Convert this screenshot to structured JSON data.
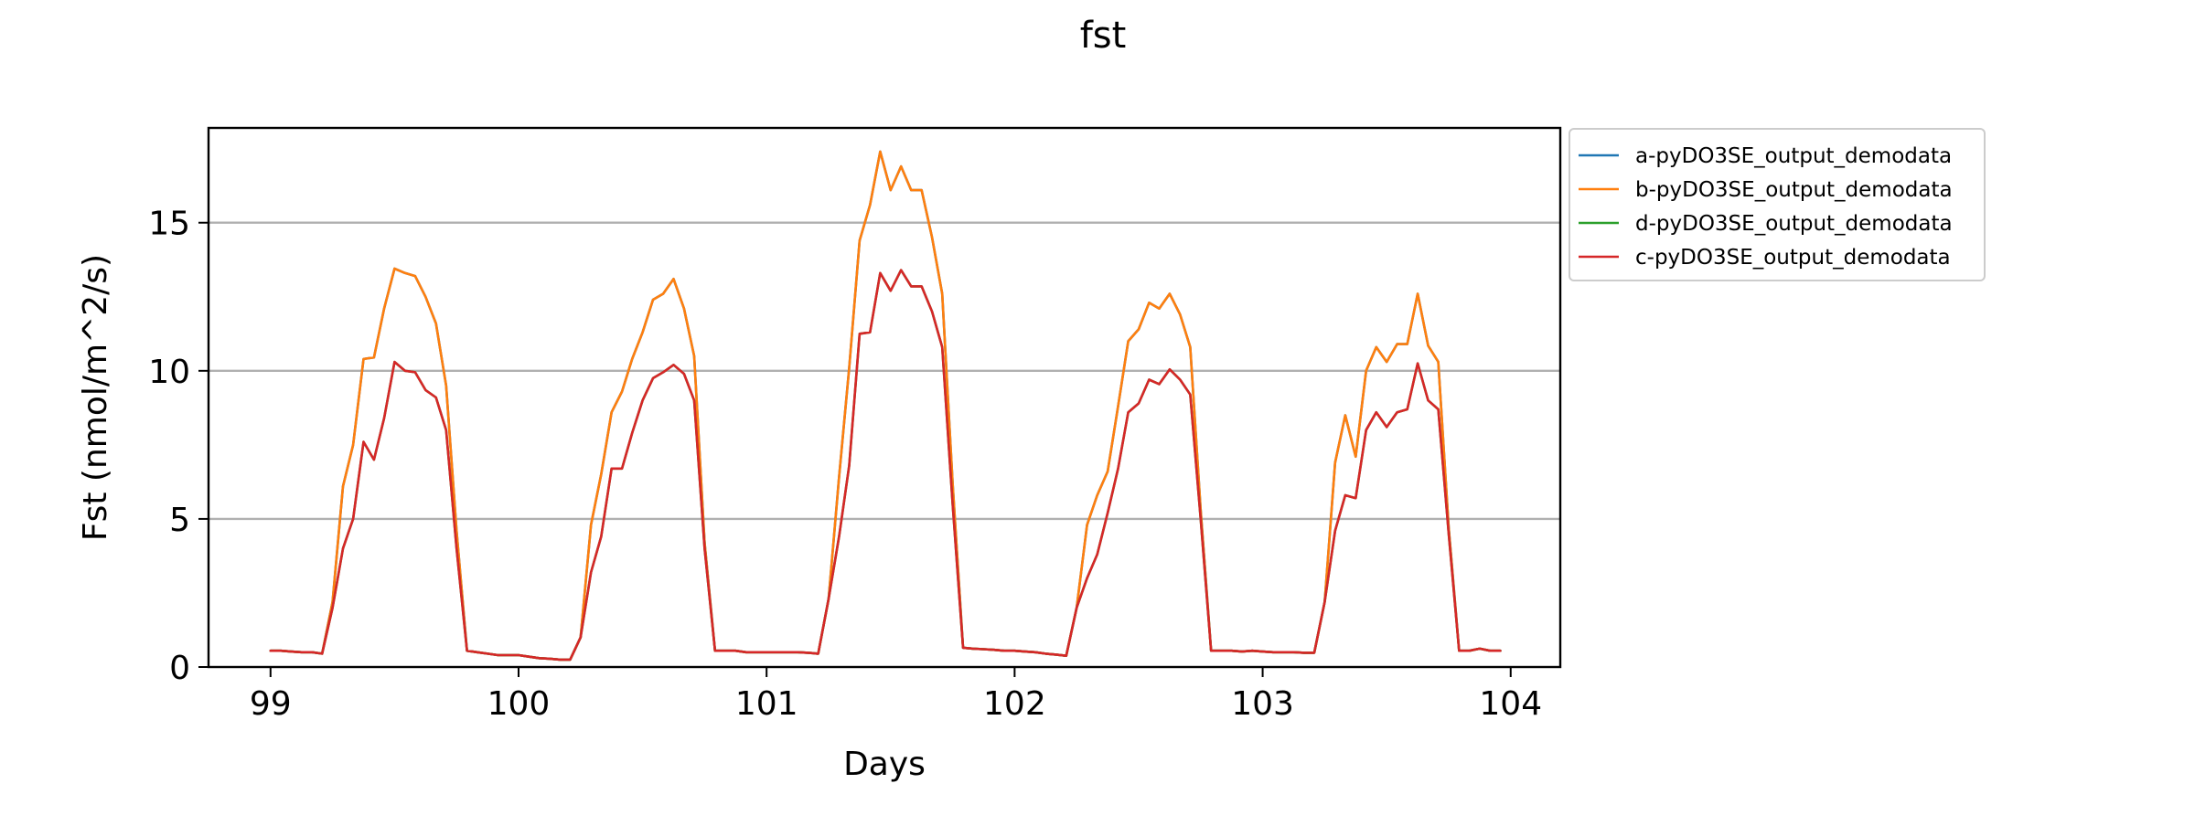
{
  "chart_data": {
    "type": "line",
    "title": "fst",
    "xlabel": "Days",
    "ylabel": "Fst (nmol/m^2/s)",
    "xlim": [
      98.75,
      104.2
    ],
    "ylim": [
      0,
      18.2
    ],
    "xticks": [
      99,
      100,
      101,
      102,
      103,
      104
    ],
    "yticks": [
      0,
      5,
      10,
      15
    ],
    "grid": "horizontal",
    "legend_position": "outside-top-right",
    "x": [
      99.0,
      99.042,
      99.083,
      99.125,
      99.167,
      99.208,
      99.25,
      99.292,
      99.333,
      99.375,
      99.417,
      99.458,
      99.5,
      99.542,
      99.583,
      99.625,
      99.667,
      99.708,
      99.75,
      99.792,
      99.833,
      99.875,
      99.917,
      99.958,
      100.0,
      100.042,
      100.083,
      100.125,
      100.167,
      100.208,
      100.25,
      100.292,
      100.333,
      100.375,
      100.417,
      100.458,
      100.5,
      100.542,
      100.583,
      100.625,
      100.667,
      100.708,
      100.75,
      100.792,
      100.833,
      100.875,
      100.917,
      100.958,
      101.0,
      101.042,
      101.083,
      101.125,
      101.167,
      101.208,
      101.25,
      101.292,
      101.333,
      101.375,
      101.417,
      101.458,
      101.5,
      101.542,
      101.583,
      101.625,
      101.667,
      101.708,
      101.75,
      101.792,
      101.833,
      101.875,
      101.917,
      101.958,
      102.0,
      102.042,
      102.083,
      102.125,
      102.167,
      102.208,
      102.25,
      102.292,
      102.333,
      102.375,
      102.417,
      102.458,
      102.5,
      102.542,
      102.583,
      102.625,
      102.667,
      102.708,
      102.75,
      102.792,
      102.833,
      102.875,
      102.917,
      102.958,
      103.0,
      103.042,
      103.083,
      103.125,
      103.167,
      103.208,
      103.25,
      103.292,
      103.333,
      103.375,
      103.417,
      103.458,
      103.5,
      103.542,
      103.583,
      103.625,
      103.667,
      103.708,
      103.75,
      103.792,
      103.833,
      103.875,
      103.917,
      103.958
    ],
    "series": [
      {
        "name": "a-pyDO3SE_output_demodata",
        "color": "#1f77b4",
        "values": [
          0.55,
          0.55,
          0.52,
          0.5,
          0.5,
          0.45,
          2.2,
          6.1,
          7.5,
          10.4,
          10.45,
          12.1,
          13.45,
          13.3,
          13.2,
          12.5,
          11.6,
          9.5,
          4.6,
          0.55,
          0.5,
          0.45,
          0.4,
          0.4,
          0.4,
          0.35,
          0.3,
          0.28,
          0.25,
          0.25,
          1.0,
          4.8,
          6.5,
          8.6,
          9.3,
          10.4,
          11.3,
          12.4,
          12.6,
          13.1,
          12.1,
          10.5,
          4.2,
          0.55,
          0.55,
          0.55,
          0.5,
          0.5,
          0.5,
          0.5,
          0.5,
          0.5,
          0.48,
          0.45,
          2.3,
          6.4,
          10.1,
          14.4,
          15.6,
          17.4,
          16.1,
          16.9,
          16.1,
          16.1,
          14.5,
          12.6,
          6.2,
          0.65,
          0.62,
          0.6,
          0.58,
          0.55,
          0.55,
          0.52,
          0.5,
          0.45,
          0.42,
          0.38,
          2.0,
          4.8,
          5.8,
          6.6,
          8.8,
          11.0,
          11.4,
          12.3,
          12.1,
          12.6,
          11.9,
          10.8,
          5.3,
          0.55,
          0.55,
          0.55,
          0.52,
          0.55,
          0.52,
          0.5,
          0.5,
          0.5,
          0.48,
          0.48,
          2.2,
          6.9,
          8.5,
          7.1,
          10.0,
          10.8,
          10.3,
          10.9,
          10.9,
          12.6,
          10.85,
          10.3,
          4.7,
          0.55,
          0.55,
          0.62,
          0.55,
          0.55
        ]
      },
      {
        "name": "b-pyDO3SE_output_demodata",
        "color": "#ff7f0e",
        "values": [
          0.55,
          0.55,
          0.52,
          0.5,
          0.5,
          0.45,
          2.2,
          6.1,
          7.5,
          10.4,
          10.45,
          12.1,
          13.45,
          13.3,
          13.2,
          12.5,
          11.6,
          9.5,
          4.6,
          0.55,
          0.5,
          0.45,
          0.4,
          0.4,
          0.4,
          0.35,
          0.3,
          0.28,
          0.25,
          0.25,
          1.0,
          4.8,
          6.5,
          8.6,
          9.3,
          10.4,
          11.3,
          12.4,
          12.6,
          13.1,
          12.1,
          10.5,
          4.2,
          0.55,
          0.55,
          0.55,
          0.5,
          0.5,
          0.5,
          0.5,
          0.5,
          0.5,
          0.48,
          0.45,
          2.3,
          6.4,
          10.1,
          14.4,
          15.6,
          17.4,
          16.1,
          16.9,
          16.1,
          16.1,
          14.5,
          12.6,
          6.2,
          0.65,
          0.62,
          0.6,
          0.58,
          0.55,
          0.55,
          0.52,
          0.5,
          0.45,
          0.42,
          0.38,
          2.0,
          4.8,
          5.8,
          6.6,
          8.8,
          11.0,
          11.4,
          12.3,
          12.1,
          12.6,
          11.9,
          10.8,
          5.3,
          0.55,
          0.55,
          0.55,
          0.52,
          0.55,
          0.52,
          0.5,
          0.5,
          0.5,
          0.48,
          0.48,
          2.2,
          6.9,
          8.5,
          7.1,
          10.0,
          10.8,
          10.3,
          10.9,
          10.9,
          12.6,
          10.85,
          10.3,
          4.7,
          0.55,
          0.55,
          0.62,
          0.55,
          0.55
        ]
      },
      {
        "name": "d-pyDO3SE_output_demodata",
        "color": "#2ca02c",
        "values": [
          0.55,
          0.55,
          0.52,
          0.5,
          0.5,
          0.45,
          2.0,
          4.0,
          5.0,
          7.6,
          7.0,
          8.4,
          10.3,
          10.0,
          9.95,
          9.35,
          9.1,
          8.0,
          4.0,
          0.55,
          0.5,
          0.45,
          0.4,
          0.4,
          0.4,
          0.35,
          0.3,
          0.28,
          0.25,
          0.25,
          1.0,
          3.2,
          4.4,
          6.7,
          6.7,
          7.9,
          9.0,
          9.75,
          9.95,
          10.2,
          9.9,
          9.0,
          4.0,
          0.55,
          0.55,
          0.55,
          0.5,
          0.5,
          0.5,
          0.5,
          0.5,
          0.5,
          0.48,
          0.45,
          2.3,
          4.4,
          6.8,
          11.25,
          11.3,
          13.3,
          12.7,
          13.4,
          12.85,
          12.85,
          12.0,
          10.8,
          5.5,
          0.65,
          0.62,
          0.6,
          0.58,
          0.55,
          0.55,
          0.52,
          0.5,
          0.45,
          0.42,
          0.38,
          2.0,
          3.0,
          3.8,
          5.2,
          6.7,
          8.6,
          8.9,
          9.7,
          9.55,
          10.05,
          9.7,
          9.2,
          5.0,
          0.55,
          0.55,
          0.55,
          0.52,
          0.55,
          0.52,
          0.5,
          0.5,
          0.5,
          0.48,
          0.48,
          2.2,
          4.6,
          5.8,
          5.7,
          8.0,
          8.6,
          8.1,
          8.6,
          8.7,
          10.25,
          9.0,
          8.7,
          4.5,
          0.55,
          0.55,
          0.62,
          0.55,
          0.55
        ]
      },
      {
        "name": "c-pyDO3SE_output_demodata",
        "color": "#d62728",
        "values": [
          0.55,
          0.55,
          0.52,
          0.5,
          0.5,
          0.45,
          2.0,
          4.0,
          5.0,
          7.6,
          7.0,
          8.4,
          10.3,
          10.0,
          9.95,
          9.35,
          9.1,
          8.0,
          4.0,
          0.55,
          0.5,
          0.45,
          0.4,
          0.4,
          0.4,
          0.35,
          0.3,
          0.28,
          0.25,
          0.25,
          1.0,
          3.2,
          4.4,
          6.7,
          6.7,
          7.9,
          9.0,
          9.75,
          9.95,
          10.2,
          9.9,
          9.0,
          4.0,
          0.55,
          0.55,
          0.55,
          0.5,
          0.5,
          0.5,
          0.5,
          0.5,
          0.5,
          0.48,
          0.45,
          2.3,
          4.4,
          6.8,
          11.25,
          11.3,
          13.3,
          12.7,
          13.4,
          12.85,
          12.85,
          12.0,
          10.8,
          5.5,
          0.65,
          0.62,
          0.6,
          0.58,
          0.55,
          0.55,
          0.52,
          0.5,
          0.45,
          0.42,
          0.38,
          2.0,
          3.0,
          3.8,
          5.2,
          6.7,
          8.6,
          8.9,
          9.7,
          9.55,
          10.05,
          9.7,
          9.2,
          5.0,
          0.55,
          0.55,
          0.55,
          0.52,
          0.55,
          0.52,
          0.5,
          0.5,
          0.5,
          0.48,
          0.48,
          2.2,
          4.6,
          5.8,
          5.7,
          8.0,
          8.6,
          8.1,
          8.6,
          8.7,
          10.25,
          9.0,
          8.7,
          4.5,
          0.55,
          0.55,
          0.62,
          0.55,
          0.55
        ]
      }
    ]
  }
}
